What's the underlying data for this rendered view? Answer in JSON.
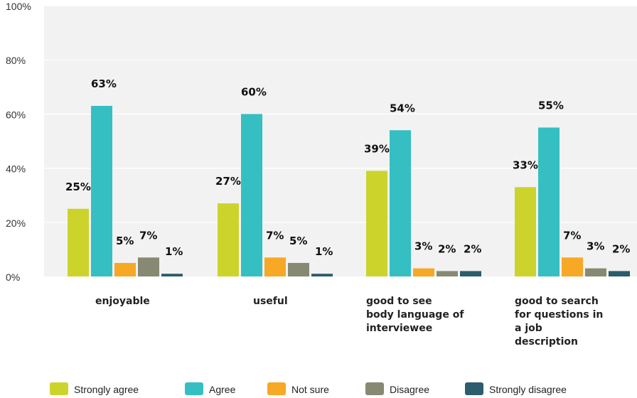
{
  "chart_data": {
    "type": "bar",
    "title": "",
    "xlabel": "",
    "ylabel": "",
    "ylim": [
      0,
      100
    ],
    "yticks": [
      "0%",
      "20%",
      "40%",
      "60%",
      "80%",
      "100%"
    ],
    "grid": true,
    "legend_position": "bottom",
    "categories": [
      [
        "enjoyable"
      ],
      [
        "useful"
      ],
      [
        "good to see",
        "body language of",
        "interviewee"
      ],
      [
        "good to search",
        "for questions in",
        "a job",
        "description"
      ]
    ],
    "series": [
      {
        "name": "Strongly agree",
        "color": "#ccd42c",
        "values": [
          25,
          27,
          39,
          33
        ],
        "labels": [
          "25%",
          "27%",
          "39%",
          "33%"
        ]
      },
      {
        "name": "Agree",
        "color": "#35bfc2",
        "values": [
          63,
          60,
          54,
          55
        ],
        "labels": [
          "63%",
          "60%",
          "54%",
          "55%"
        ]
      },
      {
        "name": "Not sure",
        "color": "#f7a824",
        "values": [
          5,
          7,
          3,
          7
        ],
        "labels": [
          "5%",
          "7%",
          "3%",
          "7%"
        ]
      },
      {
        "name": "Disagree",
        "color": "#878972",
        "values": [
          7,
          5,
          2,
          3
        ],
        "labels": [
          "7%",
          "5%",
          "2%",
          "3%"
        ]
      },
      {
        "name": "Strongly disagree",
        "color": "#2b5d6d",
        "values": [
          1,
          1,
          2,
          2
        ],
        "labels": [
          "1%",
          "1%",
          "2%",
          "2%"
        ]
      }
    ]
  }
}
